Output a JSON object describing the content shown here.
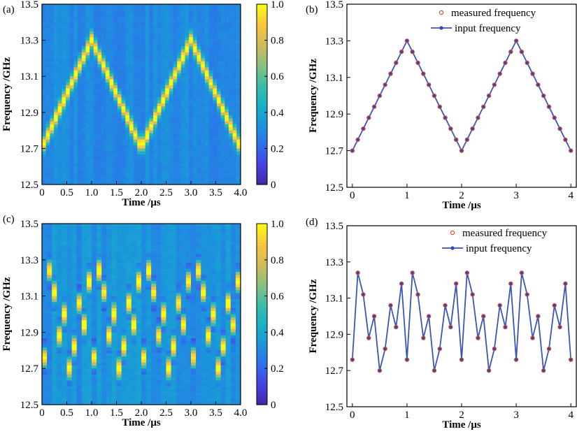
{
  "chart_data": [
    {
      "panel": "(a)",
      "type": "heatmap",
      "xlabel": "Time /μs",
      "ylabel": "Frequency /GHz",
      "xlim": [
        0,
        4.0
      ],
      "ylim": [
        12.5,
        13.5
      ],
      "x_ticks": [
        "0",
        "0.5",
        "1.0",
        "1.5",
        "2.0",
        "2.5",
        "3.0",
        "3.5",
        "4.0"
      ],
      "x_tick_values": [
        0,
        0.5,
        1.0,
        1.5,
        2.0,
        2.5,
        3.0,
        3.5,
        4.0
      ],
      "y_ticks": [
        "12.5",
        "12.7",
        "12.9",
        "13.1",
        "13.3",
        "13.5"
      ],
      "y_tick_values": [
        12.5,
        12.7,
        12.9,
        13.1,
        13.3,
        13.5
      ],
      "colorbar_ticks": [
        "0",
        "0.2",
        "0.4",
        "0.6",
        "0.8",
        "1.0"
      ],
      "colorbar_values": [
        0,
        0.2,
        0.4,
        0.6,
        0.8,
        1.0
      ],
      "columns": 50,
      "ridge": {
        "times": [
          0,
          1,
          2,
          3,
          4
        ],
        "freqs": [
          12.7,
          13.3,
          12.7,
          13.3,
          12.7
        ]
      }
    },
    {
      "panel": "(b)",
      "type": "line",
      "xlabel": "Time /μs",
      "ylabel": "Frequency /GHz",
      "xlim": [
        -0.1,
        4.1
      ],
      "ylim": [
        12.5,
        13.5
      ],
      "x_ticks": [
        "0",
        "1",
        "2",
        "3",
        "4"
      ],
      "x_tick_values": [
        0,
        1,
        2,
        3,
        4
      ],
      "y_ticks": [
        "12.5",
        "12.7",
        "12.9",
        "13.1",
        "13.3",
        "13.5"
      ],
      "y_tick_values": [
        12.5,
        12.7,
        12.9,
        13.1,
        13.3,
        13.5
      ],
      "legend": [
        "measured frequency",
        "input frequency"
      ],
      "legend_position": "top-right",
      "x": [
        0,
        0.1,
        0.2,
        0.3,
        0.4,
        0.5,
        0.6,
        0.7,
        0.8,
        0.9,
        1.0,
        1.1,
        1.2,
        1.3,
        1.4,
        1.5,
        1.6,
        1.7,
        1.8,
        1.9,
        2.0,
        2.1,
        2.2,
        2.3,
        2.4,
        2.5,
        2.6,
        2.7,
        2.8,
        2.9,
        3.0,
        3.1,
        3.2,
        3.3,
        3.4,
        3.5,
        3.6,
        3.7,
        3.8,
        3.9,
        4.0
      ],
      "series": [
        {
          "name": "input frequency",
          "values": [
            12.7,
            12.76,
            12.82,
            12.88,
            12.94,
            13.0,
            13.06,
            13.12,
            13.18,
            13.24,
            13.3,
            13.24,
            13.18,
            13.12,
            13.06,
            13.0,
            12.94,
            12.88,
            12.82,
            12.76,
            12.7,
            12.76,
            12.82,
            12.88,
            12.94,
            13.0,
            13.06,
            13.12,
            13.18,
            13.24,
            13.3,
            13.24,
            13.18,
            13.12,
            13.06,
            13.0,
            12.94,
            12.88,
            12.82,
            12.76,
            12.7
          ]
        },
        {
          "name": "measured frequency",
          "values": [
            12.7,
            12.76,
            12.82,
            12.88,
            12.94,
            13.0,
            13.06,
            13.12,
            13.18,
            13.24,
            13.3,
            13.24,
            13.18,
            13.12,
            13.06,
            13.0,
            12.94,
            12.88,
            12.82,
            12.76,
            12.7,
            12.76,
            12.82,
            12.88,
            12.94,
            13.0,
            13.06,
            13.12,
            13.18,
            13.24,
            13.3,
            13.24,
            13.18,
            13.12,
            13.06,
            13.0,
            12.94,
            12.88,
            12.82,
            12.76,
            12.7
          ]
        }
      ]
    },
    {
      "panel": "(c)",
      "type": "heatmap",
      "xlabel": "Time /μs",
      "ylabel": "Frequency /GHz",
      "xlim": [
        0,
        4.0
      ],
      "ylim": [
        12.5,
        13.5
      ],
      "x_ticks": [
        "0",
        "0.5",
        "1.0",
        "1.5",
        "2.0",
        "2.5",
        "3.0",
        "3.5",
        "4.0"
      ],
      "x_tick_values": [
        0,
        0.5,
        1.0,
        1.5,
        2.0,
        2.5,
        3.0,
        3.5,
        4.0
      ],
      "y_ticks": [
        "12.5",
        "12.7",
        "12.9",
        "13.1",
        "13.3",
        "13.5"
      ],
      "y_tick_values": [
        12.5,
        12.7,
        12.9,
        13.1,
        13.3,
        13.5
      ],
      "colorbar_ticks": [
        "0",
        "0.2",
        "0.4",
        "0.6",
        "0.8",
        "1.0"
      ],
      "colorbar_values": [
        0,
        0.2,
        0.4,
        0.6,
        0.8,
        1.0
      ],
      "columns": 40,
      "hop_times": [
        0,
        0.1,
        0.2,
        0.3,
        0.4,
        0.5,
        0.6,
        0.7,
        0.8,
        0.9,
        1.0,
        1.1,
        1.2,
        1.3,
        1.4,
        1.5,
        1.6,
        1.7,
        1.8,
        1.9,
        2.0,
        2.1,
        2.2,
        2.3,
        2.4,
        2.5,
        2.6,
        2.7,
        2.8,
        2.9,
        3.0,
        3.1,
        3.2,
        3.3,
        3.4,
        3.5,
        3.6,
        3.7,
        3.8,
        3.9
      ],
      "hop_freqs": [
        12.76,
        13.24,
        13.12,
        12.88,
        13.0,
        12.7,
        12.82,
        13.06,
        12.94,
        13.18,
        12.76,
        13.24,
        13.12,
        12.88,
        13.0,
        12.7,
        12.82,
        13.06,
        12.94,
        13.18,
        12.76,
        13.24,
        13.12,
        12.88,
        13.0,
        12.7,
        12.82,
        13.06,
        12.94,
        13.18,
        12.76,
        13.24,
        13.12,
        12.88,
        13.0,
        12.7,
        12.82,
        13.06,
        12.94,
        13.18
      ]
    },
    {
      "panel": "(d)",
      "type": "line",
      "xlabel": "Time /μs",
      "ylabel": "Frequency /GHz",
      "xlim": [
        -0.1,
        4.1
      ],
      "ylim": [
        12.5,
        13.5
      ],
      "x_ticks": [
        "0",
        "1",
        "2",
        "3",
        "4"
      ],
      "x_tick_values": [
        0,
        1,
        2,
        3,
        4
      ],
      "y_ticks": [
        "12.5",
        "12.7",
        "12.9",
        "13.1",
        "13.3",
        "13.5"
      ],
      "y_tick_values": [
        12.5,
        12.7,
        12.9,
        13.1,
        13.3,
        13.5
      ],
      "legend": [
        "measured frequency",
        "input frequency"
      ],
      "legend_position": "top-right",
      "x": [
        0,
        0.1,
        0.2,
        0.3,
        0.4,
        0.5,
        0.6,
        0.7,
        0.8,
        0.9,
        1.0,
        1.1,
        1.2,
        1.3,
        1.4,
        1.5,
        1.6,
        1.7,
        1.8,
        1.9,
        2.0,
        2.1,
        2.2,
        2.3,
        2.4,
        2.5,
        2.6,
        2.7,
        2.8,
        2.9,
        3.0,
        3.1,
        3.2,
        3.3,
        3.4,
        3.5,
        3.6,
        3.7,
        3.8,
        3.9,
        4.0
      ],
      "series": [
        {
          "name": "input frequency",
          "values": [
            12.76,
            13.24,
            13.12,
            12.88,
            13.0,
            12.7,
            12.82,
            13.06,
            12.94,
            13.18,
            12.76,
            13.24,
            13.12,
            12.88,
            13.0,
            12.7,
            12.82,
            13.06,
            12.94,
            13.18,
            12.76,
            13.24,
            13.12,
            12.88,
            13.0,
            12.7,
            12.82,
            13.06,
            12.94,
            13.18,
            12.76,
            13.24,
            13.12,
            12.88,
            13.0,
            12.7,
            12.82,
            13.06,
            12.94,
            13.18,
            12.76
          ]
        },
        {
          "name": "measured frequency",
          "values": [
            12.76,
            13.24,
            13.12,
            12.88,
            13.0,
            12.7,
            12.82,
            13.06,
            12.94,
            13.18,
            12.76,
            13.24,
            13.12,
            12.88,
            13.0,
            12.7,
            12.82,
            13.06,
            12.94,
            13.18,
            12.76,
            13.24,
            13.12,
            12.88,
            13.0,
            12.7,
            12.82,
            13.06,
            12.94,
            13.18,
            12.76,
            13.24,
            13.12,
            12.88,
            13.0,
            12.7,
            12.82,
            13.06,
            12.94,
            13.18,
            12.76
          ]
        }
      ]
    }
  ],
  "colors": {
    "input_line": "#3a55b4",
    "input_marker": "#2f4aa8",
    "measured_marker": "#e04a3a",
    "axis": "#000000",
    "colormap": [
      "#3e26a8",
      "#4741e3",
      "#2f70ec",
      "#1b95dc",
      "#18b1c6",
      "#3cbea6",
      "#8cc07e",
      "#d2ba59",
      "#f9c73e",
      "#f9fb15"
    ]
  }
}
